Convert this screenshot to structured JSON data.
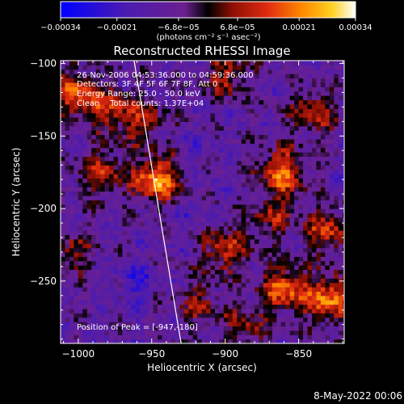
{
  "colorbar": {
    "tick_labels": [
      "−0.00034",
      "−0.00021",
      "−6.8e−05",
      "6.8e−05",
      "0.00021",
      "0.00034"
    ],
    "ticks": [
      -0.00034,
      -0.00021,
      -6.8e-05,
      6.8e-05,
      0.00021,
      0.00034
    ],
    "range": [
      -0.00034,
      0.00034
    ],
    "unit_label": "(photons cm⁻² s⁻¹ asec⁻²)",
    "colors": [
      "#0000ff",
      "#4b1bb0",
      "#7a2a9a",
      "#000000",
      "#cc1f10",
      "#ff7000",
      "#ffd020",
      "#ffffff"
    ]
  },
  "chart_data": {
    "type": "heatmap",
    "title": "Reconstructed RHESSI Image",
    "xlabel": "Heliocentric X (arcsec)",
    "ylabel": "Heliocentric Y (arcsec)",
    "xlim": [
      -1012,
      -819
    ],
    "ylim": [
      -293,
      -98
    ],
    "x_ticks": [
      -1000,
      -950,
      -900,
      -850
    ],
    "x_tick_labels": [
      "−1000",
      "−950",
      "−900",
      "−850"
    ],
    "y_ticks": [
      -250,
      -200,
      -150,
      -100
    ],
    "y_tick_labels": [
      "−250",
      "−200",
      "−150",
      "−100"
    ],
    "grid": false,
    "annotations": [
      "26-Nov-2006 04:53:36.000 to 04:59:36.000",
      "Detectors: 3F 4F 5F 6F 7F 8F, Att 0",
      "Energy Range: 25.0 - 50.0 keV",
      "Clean    Total counts: 1.37E+04"
    ],
    "peak_label": "Position of Peak = [-947,-180]",
    "peak": [
      -947,
      -180
    ],
    "limb_line": [
      [
        -962,
        -98
      ],
      [
        -930,
        -293
      ]
    ],
    "hot_spots": [
      {
        "x": -947,
        "y": -180,
        "value": 0.00034
      },
      {
        "x": -861,
        "y": -174,
        "value": 0.00029
      },
      {
        "x": -830,
        "y": -262,
        "value": 0.0003
      },
      {
        "x": -860,
        "y": -255,
        "value": 0.00027
      },
      {
        "x": -985,
        "y": -175,
        "value": 0.0002
      },
      {
        "x": -900,
        "y": -228,
        "value": 0.00022
      },
      {
        "x": -900,
        "y": -108,
        "value": 0.00018
      },
      {
        "x": -840,
        "y": -135,
        "value": 0.0002
      },
      {
        "x": -1003,
        "y": -120,
        "value": 0.00024
      },
      {
        "x": -980,
        "y": -130,
        "value": 0.00018
      },
      {
        "x": -830,
        "y": -215,
        "value": 0.00022
      },
      {
        "x": -957,
        "y": -140,
        "value": 0.00018
      },
      {
        "x": -868,
        "y": -205,
        "value": 0.00016
      },
      {
        "x": -885,
        "y": -282,
        "value": 0.00017
      },
      {
        "x": -1005,
        "y": -230,
        "value": 0.00015
      },
      {
        "x": -918,
        "y": -265,
        "value": 0.00015
      }
    ],
    "cold_spots": [
      {
        "x": -960,
        "y": -250,
        "value": -0.00022
      },
      {
        "x": -930,
        "y": -210,
        "value": -0.00015
      },
      {
        "x": -922,
        "y": -160,
        "value": -0.00014
      },
      {
        "x": -872,
        "y": -280,
        "value": -0.00014
      },
      {
        "x": -848,
        "y": -160,
        "value": -0.00013
      }
    ]
  },
  "footer": {
    "date": "8-May-2022 00:06"
  }
}
